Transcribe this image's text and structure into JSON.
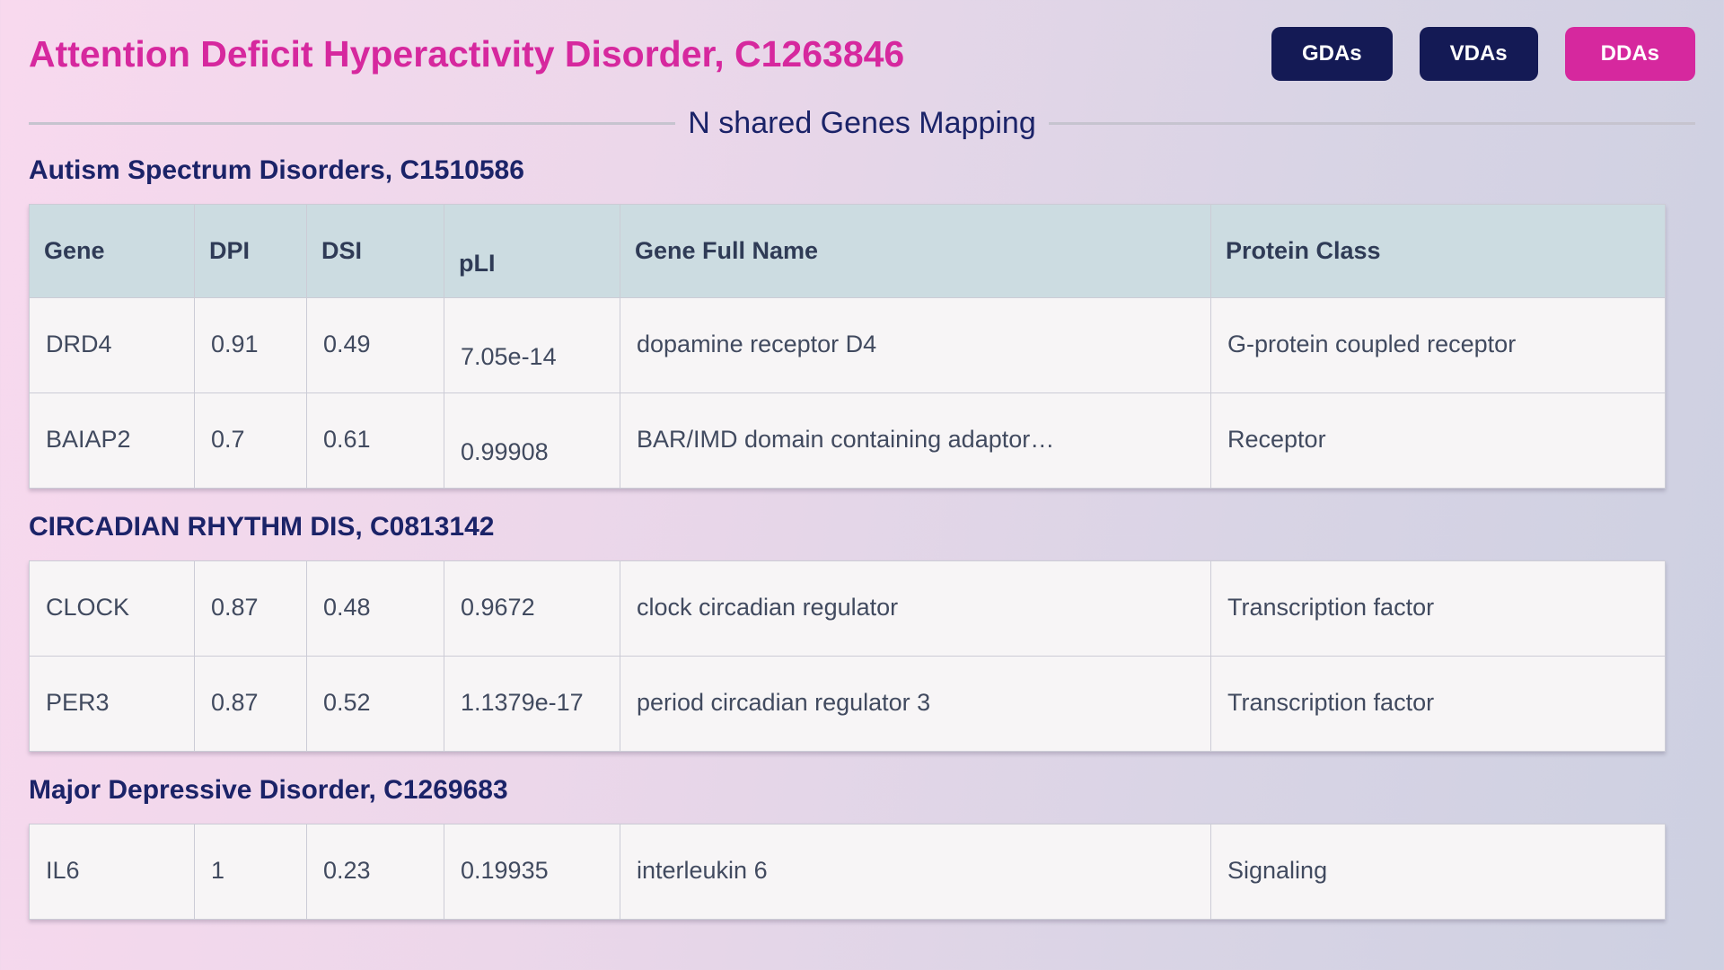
{
  "header": {
    "title": "Attention Deficit Hyperactivity Disorder, C1263846",
    "buttons": [
      {
        "id": "gdas",
        "label": "GDAs",
        "active": false
      },
      {
        "id": "vdas",
        "label": "VDAs",
        "active": false
      },
      {
        "id": "ddas",
        "label": "DDAs",
        "active": true
      }
    ]
  },
  "divider_label": "N shared Genes Mapping",
  "columns": [
    "Gene",
    "DPI",
    "DSI",
    "pLI",
    "Gene Full Name",
    "Protein Class"
  ],
  "diseases": [
    {
      "name": "Autism Spectrum Disorders, C1510586",
      "show_header": true,
      "pli_shift": true,
      "rows": [
        {
          "gene": "DRD4",
          "dpi": "0.91",
          "dsi": "0.49",
          "pli": "7.05e-14",
          "full_name": "dopamine receptor D4",
          "protein_class": "G-protein coupled receptor"
        },
        {
          "gene": "BAIAP2",
          "dpi": "0.7",
          "dsi": "0.61",
          "pli": "0.99908",
          "full_name": "BAR/IMD domain containing adaptor…",
          "protein_class": "Receptor"
        }
      ]
    },
    {
      "name": "CIRCADIAN RHYTHM DIS, C0813142",
      "show_header": false,
      "pli_shift": false,
      "rows": [
        {
          "gene": "CLOCK",
          "dpi": "0.87",
          "dsi": "0.48",
          "pli": "0.9672",
          "full_name": "clock circadian regulator",
          "protein_class": "Transcription factor"
        },
        {
          "gene": "PER3",
          "dpi": "0.87",
          "dsi": "0.52",
          "pli": "1.1379e-17",
          "full_name": "period circadian regulator 3",
          "protein_class": "Transcription factor"
        }
      ]
    },
    {
      "name": "Major Depressive Disorder, C1269683",
      "show_header": false,
      "pli_shift": false,
      "rows": [
        {
          "gene": "IL6",
          "dpi": "1",
          "dsi": "0.23",
          "pli": "0.19935",
          "full_name": "interleukin 6",
          "protein_class": "Signaling"
        }
      ]
    }
  ],
  "colors": {
    "accent_pink": "#d6289e",
    "navy": "#141a55",
    "heading_navy": "#1b2368",
    "header_bg": "#ccdce1",
    "row_bg": "#f7f5f6",
    "scrollbar_blue": "#3845cf"
  }
}
